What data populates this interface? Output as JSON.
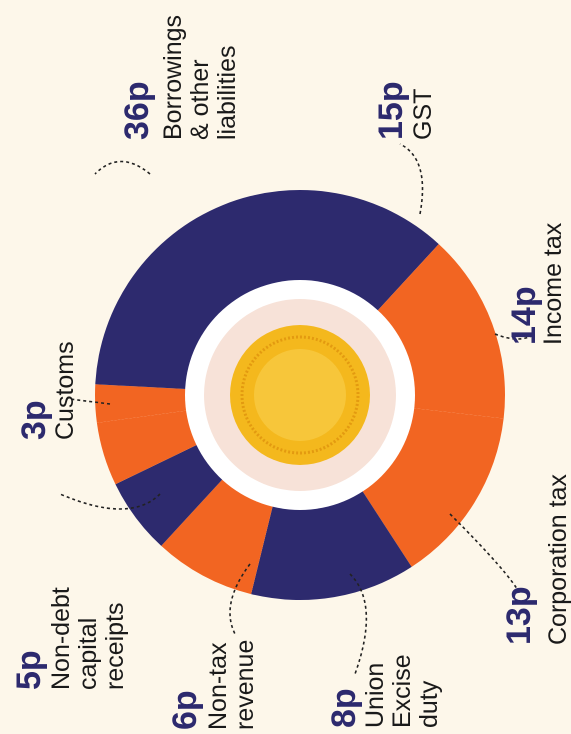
{
  "chart_data": {
    "type": "donut",
    "categories": [
      [
        "Customs"
      ],
      [
        "Borrowings",
        "& other",
        "liabilities"
      ],
      [
        "GST"
      ],
      [
        "Income tax"
      ],
      [
        "Corporation tax"
      ],
      [
        "Union",
        "Excise",
        "duty"
      ],
      [
        "Non-tax",
        "revenue"
      ],
      [
        "Non-debt",
        "capital",
        "receipts"
      ]
    ],
    "values": [
      3,
      36,
      15,
      14,
      13,
      8,
      6,
      5
    ],
    "value_labels": [
      "3p",
      "36p",
      "15p",
      "14p",
      "13p",
      "8p",
      "6p",
      "5p"
    ],
    "colors": [
      "#f26522",
      "#2d2a6e",
      "#f26522",
      "#f26522",
      "#2d2a6e",
      "#f26522",
      "#2d2a6e",
      "#f26522"
    ]
  }
}
